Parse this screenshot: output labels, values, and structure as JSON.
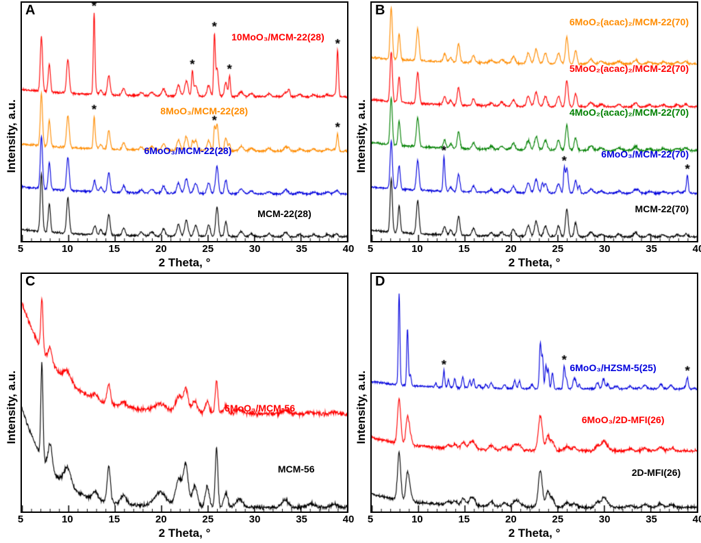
{
  "figure": {
    "background": "#ffffff"
  },
  "patterns": {
    "mww": [
      [
        7.1,
        1.0,
        0.17
      ],
      [
        7.95,
        0.5,
        0.17
      ],
      [
        9.95,
        0.62,
        0.2
      ],
      [
        12.85,
        0.16,
        0.2
      ],
      [
        13.5,
        0.09,
        0.2
      ],
      [
        14.35,
        0.36,
        0.2
      ],
      [
        15.95,
        0.13,
        0.22
      ],
      [
        17.85,
        0.06,
        0.25
      ],
      [
        19.0,
        0.07,
        0.28
      ],
      [
        20.25,
        0.13,
        0.25
      ],
      [
        21.85,
        0.2,
        0.25
      ],
      [
        22.7,
        0.28,
        0.25
      ],
      [
        23.7,
        0.2,
        0.25
      ],
      [
        25.1,
        0.2,
        0.24
      ],
      [
        26.0,
        0.52,
        0.2
      ],
      [
        26.95,
        0.26,
        0.2
      ],
      [
        28.6,
        0.09,
        0.3
      ],
      [
        29.7,
        0.05,
        0.3
      ],
      [
        31.6,
        0.05,
        0.3
      ],
      [
        33.4,
        0.08,
        0.3
      ],
      [
        34.9,
        0.04,
        0.3
      ],
      [
        36.4,
        0.04,
        0.3
      ],
      [
        37.9,
        0.04,
        0.3
      ],
      [
        38.8,
        0.05,
        0.3
      ]
    ],
    "mcm56": [
      [
        7.15,
        0.8,
        0.16
      ],
      [
        8.05,
        0.22,
        0.3
      ],
      [
        9.9,
        0.16,
        0.55
      ],
      [
        12.9,
        0.07,
        0.35
      ],
      [
        14.35,
        0.3,
        0.25
      ],
      [
        15.95,
        0.08,
        0.4
      ],
      [
        19.9,
        0.12,
        0.9
      ],
      [
        21.9,
        0.24,
        0.5
      ],
      [
        22.65,
        0.35,
        0.35
      ],
      [
        23.6,
        0.18,
        0.4
      ],
      [
        24.95,
        0.18,
        0.3
      ],
      [
        25.95,
        0.5,
        0.2
      ],
      [
        26.95,
        0.12,
        0.3
      ],
      [
        28.4,
        0.07,
        0.5
      ],
      [
        33.35,
        0.06,
        0.5
      ],
      [
        36.1,
        0.03,
        0.5
      ],
      [
        38.6,
        0.03,
        0.5
      ]
    ],
    "mfi2d": [
      [
        7.95,
        0.52,
        0.24
      ],
      [
        8.85,
        0.3,
        0.24
      ],
      [
        9.15,
        0.1,
        0.25
      ],
      [
        13.25,
        0.04,
        0.3
      ],
      [
        13.95,
        0.05,
        0.3
      ],
      [
        14.85,
        0.08,
        0.3
      ],
      [
        15.6,
        0.06,
        0.32
      ],
      [
        15.95,
        0.07,
        0.32
      ],
      [
        17.85,
        0.05,
        0.35
      ],
      [
        19.3,
        0.04,
        0.35
      ],
      [
        20.4,
        0.06,
        0.35
      ],
      [
        20.9,
        0.05,
        0.35
      ],
      [
        23.15,
        0.4,
        0.3
      ],
      [
        23.95,
        0.17,
        0.28
      ],
      [
        24.45,
        0.1,
        0.28
      ],
      [
        26.0,
        0.05,
        0.35
      ],
      [
        26.8,
        0.04,
        0.35
      ],
      [
        29.3,
        0.06,
        0.35
      ],
      [
        29.95,
        0.1,
        0.33
      ],
      [
        30.4,
        0.04,
        0.35
      ],
      [
        32.8,
        0.02,
        0.4
      ],
      [
        34.4,
        0.03,
        0.4
      ],
      [
        36.1,
        0.04,
        0.4
      ],
      [
        37.3,
        0.03,
        0.4
      ]
    ],
    "zsm5": [
      [
        7.95,
        1.0,
        0.12
      ],
      [
        8.85,
        0.62,
        0.12
      ],
      [
        9.15,
        0.12,
        0.14
      ],
      [
        11.9,
        0.04,
        0.15
      ],
      [
        13.25,
        0.08,
        0.14
      ],
      [
        13.95,
        0.1,
        0.14
      ],
      [
        14.8,
        0.12,
        0.14
      ],
      [
        15.55,
        0.08,
        0.15
      ],
      [
        15.95,
        0.1,
        0.15
      ],
      [
        16.55,
        0.04,
        0.18
      ],
      [
        17.3,
        0.04,
        0.18
      ],
      [
        17.85,
        0.06,
        0.18
      ],
      [
        19.3,
        0.04,
        0.18
      ],
      [
        20.4,
        0.09,
        0.16
      ],
      [
        20.9,
        0.08,
        0.16
      ],
      [
        22.25,
        0.05,
        0.18
      ],
      [
        23.15,
        0.5,
        0.14
      ],
      [
        23.4,
        0.28,
        0.12
      ],
      [
        23.75,
        0.26,
        0.13
      ],
      [
        24.0,
        0.22,
        0.12
      ],
      [
        24.45,
        0.18,
        0.14
      ],
      [
        25.7,
        0.1,
        0.15
      ],
      [
        25.95,
        0.11,
        0.14
      ],
      [
        26.75,
        0.09,
        0.16
      ],
      [
        26.95,
        0.07,
        0.16
      ],
      [
        29.3,
        0.07,
        0.2
      ],
      [
        29.95,
        0.11,
        0.18
      ],
      [
        30.4,
        0.05,
        0.2
      ],
      [
        31.3,
        0.03,
        0.25
      ],
      [
        32.8,
        0.03,
        0.25
      ],
      [
        34.4,
        0.04,
        0.25
      ],
      [
        36.1,
        0.05,
        0.25
      ],
      [
        37.2,
        0.04,
        0.25
      ],
      [
        38.8,
        0.03,
        0.25
      ]
    ],
    "moo3": [
      [
        12.77,
        1.0,
        0.12
      ],
      [
        23.35,
        0.33,
        0.13
      ],
      [
        25.72,
        0.8,
        0.12
      ],
      [
        27.35,
        0.28,
        0.13
      ],
      [
        33.75,
        0.09,
        0.15
      ],
      [
        38.98,
        0.6,
        0.13
      ]
    ]
  },
  "chart_data": [
    {
      "type": "line",
      "panel_label": "A",
      "xlabel": "2 Theta, °",
      "ylabel": "Intensity, a.u.",
      "xlim": [
        5,
        40
      ],
      "xticks": [
        5,
        10,
        15,
        20,
        25,
        30,
        35,
        40
      ],
      "minor_tick_step": 1,
      "ymax": 4.0,
      "peak_marker": "*",
      "series": [
        {
          "name": "MCM-22(28)",
          "color": "#000000",
          "offset": 0,
          "pattern": "mww",
          "scale": 1.0,
          "moo3": 0,
          "bg": [
            0.13,
            7
          ],
          "noise": 0.022,
          "seed": 11,
          "asterisks": [],
          "label": {
            "text": "MCM-22(28)",
            "fx": 0.89,
            "fy": 0.865
          }
        },
        {
          "name": "6MoO₃/MCM-22(28)",
          "color": "#0000dd",
          "offset": 0.75,
          "pattern": "mww",
          "scale": 0.92,
          "moo3": 0.06,
          "bg": [
            0.13,
            7
          ],
          "noise": 0.022,
          "seed": 12,
          "asterisks": [],
          "label": {
            "text": "6MoO₃/MCM-22(28)",
            "fx": 0.645,
            "fy": 0.6
          }
        },
        {
          "name": "8MoO₃/MCM-22(28)",
          "color": "#ff8c00",
          "offset": 1.5,
          "pattern": "mww",
          "scale": 0.9,
          "moo3": 0.45,
          "bg": [
            0.13,
            7
          ],
          "noise": 0.022,
          "seed": 13,
          "asterisks": [
            12.77,
            25.72,
            38.98
          ],
          "label": {
            "text": "8MoO₃/MCM-22(28)",
            "fx": 0.695,
            "fy": 0.435
          }
        },
        {
          "name": "10MoO₃/MCM-22(28)",
          "color": "#ff0000",
          "offset": 2.45,
          "pattern": "mww",
          "scale": 0.95,
          "moo3": 1.3,
          "bg": [
            0.13,
            7
          ],
          "noise": 0.022,
          "seed": 14,
          "asterisks": [
            12.77,
            23.35,
            25.72,
            27.35,
            38.98
          ],
          "label": {
            "text": "10MoO₃/MCM-22(28)",
            "fx": 0.93,
            "fy": 0.125
          }
        }
      ]
    },
    {
      "type": "line",
      "panel_label": "B",
      "xlabel": "2 Theta, °",
      "ylabel": "Intensity, a.u.",
      "xlim": [
        5,
        40
      ],
      "xticks": [
        5,
        10,
        15,
        20,
        25,
        30,
        35,
        40
      ],
      "minor_tick_step": 1,
      "ymax": 4.1,
      "peak_marker": "*",
      "series": [
        {
          "name": "MCM-22(70)",
          "color": "#000000",
          "offset": 0,
          "pattern": "mww",
          "scale": 0.95,
          "moo3": 0,
          "bg": [
            0.12,
            7
          ],
          "noise": 0.024,
          "seed": 21,
          "asterisks": [],
          "label": {
            "text": "MCM-22(70)",
            "fx": 0.975,
            "fy": 0.845
          }
        },
        {
          "name": "6MoO₃/MCM-22(70)",
          "color": "#0000dd",
          "offset": 0.78,
          "pattern": "mww",
          "scale": 0.85,
          "moo3": 0.5,
          "bg": [
            0.12,
            7
          ],
          "noise": 0.022,
          "seed": 22,
          "asterisks": [
            12.77,
            25.72,
            38.98
          ],
          "label": {
            "text": "6MoO₃/MCM-22(70)",
            "fx": 0.975,
            "fy": 0.615
          }
        },
        {
          "name": "4MoO₂(acac)₂/MCM-22(70)",
          "color": "#008000",
          "offset": 1.55,
          "pattern": "mww",
          "scale": 0.85,
          "moo3": 0,
          "bg": [
            0.14,
            7
          ],
          "noise": 0.026,
          "seed": 23,
          "asterisks": [],
          "label": {
            "text": "4MoO₂(acac)₂/MCM-22(70)",
            "fx": 0.975,
            "fy": 0.44
          }
        },
        {
          "name": "5MoO₂(acac)₂/MCM-22(70)",
          "color": "#ff0000",
          "offset": 2.33,
          "pattern": "mww",
          "scale": 0.9,
          "moo3": 0,
          "bg": [
            0.13,
            7
          ],
          "noise": 0.024,
          "seed": 24,
          "asterisks": [],
          "label": {
            "text": "5MoO₂(acac)₂/MCM-22(70)",
            "fx": 0.975,
            "fy": 0.255
          }
        },
        {
          "name": "6MoO₂(acac)₂/MCM-22(70)",
          "color": "#ff8c00",
          "offset": 3.1,
          "pattern": "mww",
          "scale": 0.92,
          "moo3": 0,
          "bg": [
            0.12,
            7
          ],
          "noise": 0.024,
          "seed": 25,
          "asterisks": [],
          "label": {
            "text": "6MoO₂(acac)₂/MCM-22(70)",
            "fx": 0.975,
            "fy": 0.06
          }
        }
      ]
    },
    {
      "type": "line",
      "panel_label": "C",
      "xlabel": "2 Theta, °",
      "ylabel": "Intensity, a.u.",
      "xlim": [
        5,
        40
      ],
      "xticks": [
        5,
        10,
        15,
        20,
        25,
        30,
        35,
        40
      ],
      "minor_tick_step": 1,
      "ymax": 1.95,
      "peak_marker": "*",
      "series": [
        {
          "name": "MCM-56",
          "color": "#000000",
          "offset": 0,
          "pattern": "mcm56",
          "scale": 1.0,
          "moo3": 0,
          "bg": [
            0.85,
            3.2
          ],
          "noise": 0.02,
          "seed": 31,
          "asterisks": [],
          "label": {
            "text": "MCM-56",
            "fx": 0.9,
            "fy": 0.8
          }
        },
        {
          "name": "6MoO₃/MCM-56",
          "color": "#ff0000",
          "offset": 0.8,
          "pattern": "mcm56",
          "scale": 0.55,
          "moo3": 0,
          "bg": [
            0.95,
            4.0
          ],
          "noise": 0.022,
          "seed": 32,
          "asterisks": [],
          "label": {
            "text": "6MoO₃/MCM-56",
            "fx": 0.84,
            "fy": 0.545
          }
        }
      ]
    },
    {
      "type": "line",
      "panel_label": "D",
      "xlabel": "2 Theta, °",
      "ylabel": "Intensity, a.u.",
      "xlim": [
        5,
        40
      ],
      "xticks": [
        5,
        10,
        15,
        20,
        25,
        30,
        35,
        40
      ],
      "minor_tick_step": 1,
      "ymax": 2.5,
      "peak_marker": "*",
      "series": [
        {
          "name": "2D-MFI(26)",
          "color": "#000000",
          "offset": 0,
          "pattern": "mfi2d",
          "scale": 1.0,
          "moo3": 0,
          "bg": [
            0.15,
            5
          ],
          "noise": 0.02,
          "seed": 41,
          "asterisks": [],
          "label": {
            "text": "2D-MFI(26)",
            "fx": 0.95,
            "fy": 0.815
          }
        },
        {
          "name": "6MoO₃/2D-MFI(26)",
          "color": "#ff0000",
          "offset": 0.62,
          "pattern": "mfi2d",
          "scale": 0.95,
          "moo3": 0,
          "bg": [
            0.15,
            5
          ],
          "noise": 0.02,
          "seed": 42,
          "asterisks": [],
          "label": {
            "text": "6MoO₃/2D-MFI(26)",
            "fx": 0.9,
            "fy": 0.595
          }
        },
        {
          "name": "6MoO₃/HZSM-5(25)",
          "color": "#0000dd",
          "offset": 1.3,
          "pattern": "zsm5",
          "scale": 1.0,
          "moo3": 0.18,
          "bg": [
            0.08,
            5
          ],
          "noise": 0.014,
          "seed": 43,
          "asterisks": [
            12.77,
            25.72,
            38.98
          ],
          "label": {
            "text": "6MoO₃/HZSM-5(25)",
            "fx": 0.875,
            "fy": 0.375
          }
        }
      ]
    }
  ]
}
